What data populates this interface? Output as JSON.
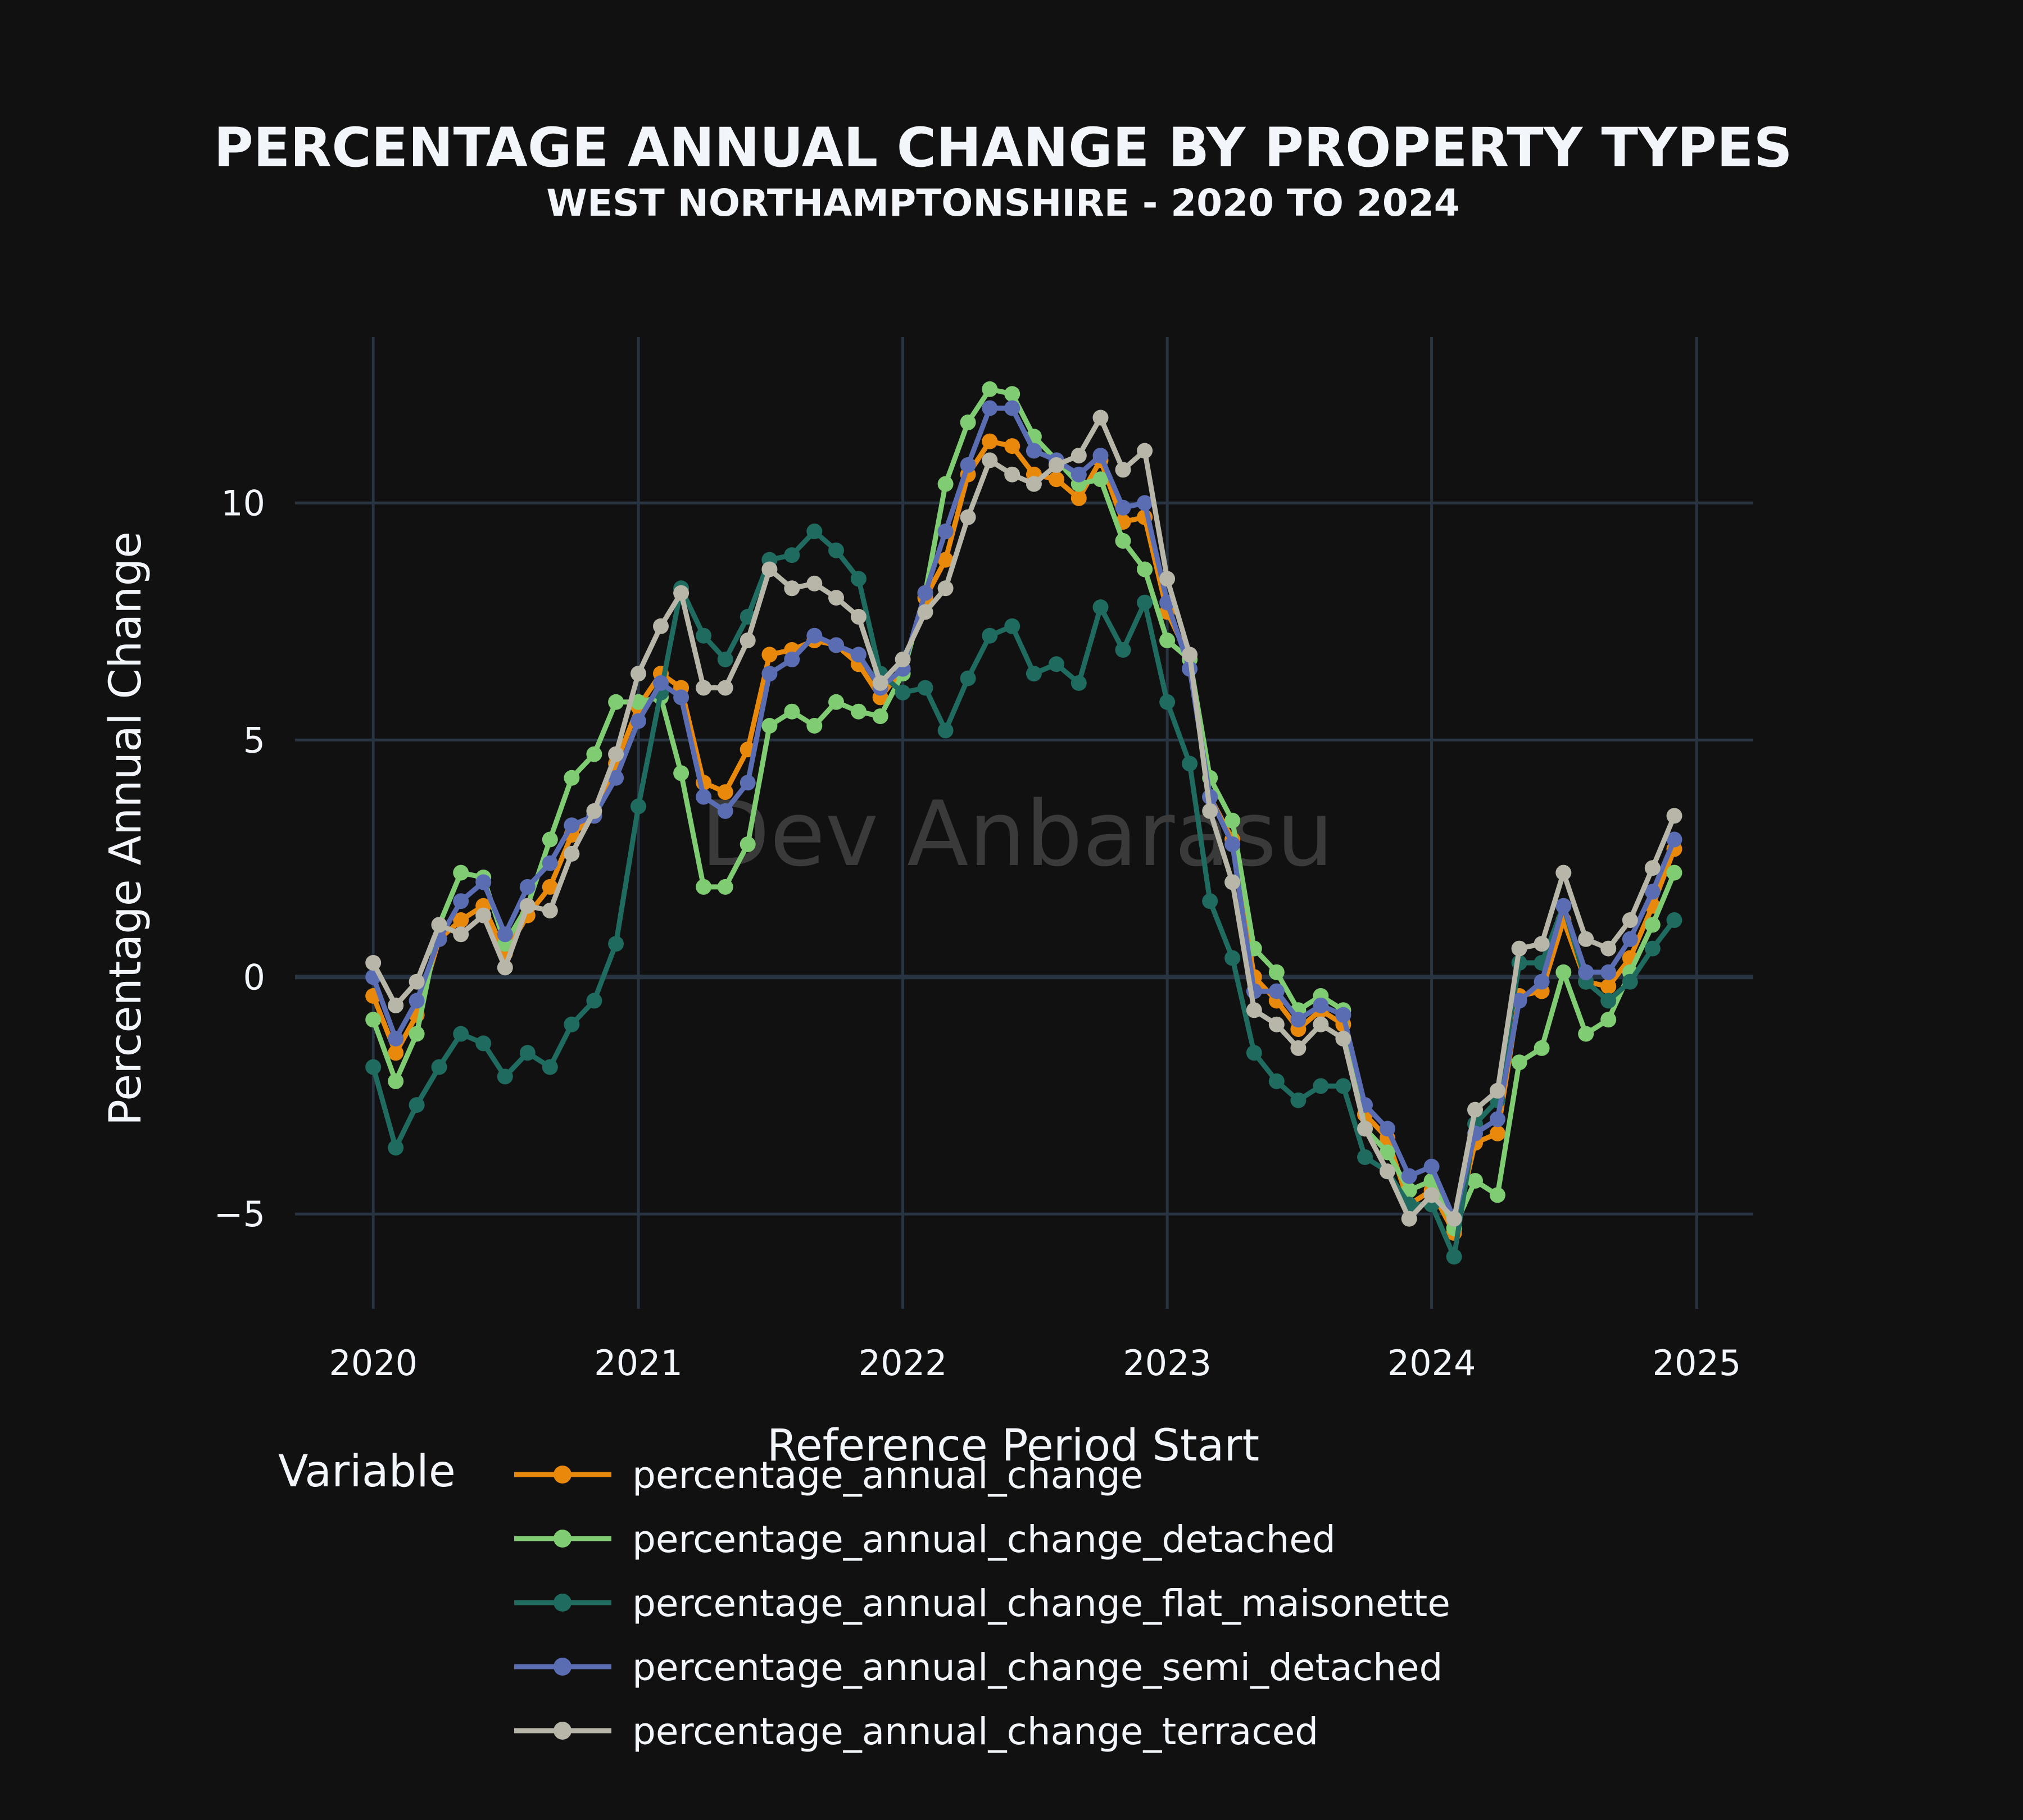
{
  "watermark": "Dev Anbarasu",
  "chart_data": {
    "type": "line",
    "title": "PERCENTAGE ANNUAL CHANGE BY PROPERTY TYPES",
    "subtitle": "WEST NORTHAMPTONSHIRE - 2020 TO 2024",
    "xlabel": "Reference Period Start",
    "ylabel": "Percentage Annual Change",
    "legend_title": "Variable",
    "legend_position": "bottom",
    "grid": true,
    "xlim": [
      "2019-09-15",
      "2025-03-20"
    ],
    "ylim": [
      -7,
      13.5
    ],
    "x_ticks": [
      "2020",
      "2021",
      "2022",
      "2023",
      "2024",
      "2025"
    ],
    "y_ticks": [
      -5,
      0,
      5,
      10
    ],
    "y_tick_labels": [
      "−5",
      "0",
      "5",
      "10"
    ],
    "x": [
      "2020-01",
      "2020-02",
      "2020-03",
      "2020-04",
      "2020-05",
      "2020-06",
      "2020-07",
      "2020-08",
      "2020-09",
      "2020-10",
      "2020-11",
      "2020-12",
      "2021-01",
      "2021-02",
      "2021-03",
      "2021-04",
      "2021-05",
      "2021-06",
      "2021-07",
      "2021-08",
      "2021-09",
      "2021-10",
      "2021-11",
      "2021-12",
      "2022-01",
      "2022-02",
      "2022-03",
      "2022-04",
      "2022-05",
      "2022-06",
      "2022-07",
      "2022-08",
      "2022-09",
      "2022-10",
      "2022-11",
      "2022-12",
      "2023-01",
      "2023-02",
      "2023-03",
      "2023-04",
      "2023-05",
      "2023-06",
      "2023-07",
      "2023-08",
      "2023-09",
      "2023-10",
      "2023-11",
      "2023-12",
      "2024-01",
      "2024-02",
      "2024-03",
      "2024-04",
      "2024-05",
      "2024-06",
      "2024-07",
      "2024-08",
      "2024-09",
      "2024-10",
      "2024-11",
      "2024-12"
    ],
    "series": [
      {
        "name": "percentage_annual_change",
        "color": "#e8890c",
        "values": [
          -0.4,
          -1.6,
          -0.8,
          0.8,
          1.2,
          1.5,
          0.5,
          1.3,
          1.9,
          3.0,
          3.4,
          4.5,
          5.7,
          6.4,
          6.1,
          4.1,
          3.9,
          4.8,
          6.8,
          6.9,
          7.1,
          7.0,
          6.6,
          5.9,
          6.5,
          8.0,
          8.8,
          10.6,
          11.3,
          11.2,
          10.6,
          10.5,
          10.1,
          10.9,
          9.6,
          9.7,
          7.7,
          6.7,
          3.8,
          2.9,
          0.0,
          -0.5,
          -1.1,
          -0.7,
          -1.0,
          -2.9,
          -3.4,
          -4.8,
          -4.5,
          -5.4,
          -3.5,
          -3.3,
          -0.4,
          -0.3,
          1.2,
          -0.1,
          -0.2,
          0.4,
          1.5,
          2.7
        ]
      },
      {
        "name": "percentage_annual_change_detached",
        "color": "#7fcc72",
        "values": [
          -0.9,
          -2.2,
          -1.2,
          1.1,
          2.2,
          2.1,
          0.7,
          1.5,
          2.9,
          4.2,
          4.7,
          5.8,
          5.8,
          5.9,
          4.3,
          1.9,
          1.9,
          2.8,
          5.3,
          5.6,
          5.3,
          5.8,
          5.6,
          5.5,
          6.4,
          8.1,
          10.4,
          11.7,
          12.4,
          12.3,
          11.4,
          10.9,
          10.4,
          10.5,
          9.2,
          8.6,
          7.1,
          6.7,
          4.2,
          3.3,
          0.6,
          0.1,
          -0.7,
          -0.4,
          -0.7,
          -3.2,
          -3.7,
          -4.5,
          -4.3,
          -5.3,
          -4.3,
          -4.6,
          -1.8,
          -1.5,
          0.1,
          -1.2,
          -0.9,
          0.1,
          1.1,
          2.2
        ]
      },
      {
        "name": "percentage_annual_change_flat_maisonette",
        "color": "#1f6b5f",
        "values": [
          -1.9,
          -3.6,
          -2.7,
          -1.9,
          -1.2,
          -1.4,
          -2.1,
          -1.6,
          -1.9,
          -1.0,
          -0.5,
          0.7,
          3.6,
          6.0,
          8.2,
          7.2,
          6.7,
          7.6,
          8.8,
          8.9,
          9.4,
          9.0,
          8.4,
          6.4,
          6.0,
          6.1,
          5.2,
          6.3,
          7.2,
          7.4,
          6.4,
          6.6,
          6.2,
          7.8,
          6.9,
          7.9,
          5.8,
          4.5,
          1.6,
          0.4,
          -1.6,
          -2.2,
          -2.6,
          -2.3,
          -2.3,
          -3.8,
          -4.1,
          -4.8,
          -4.8,
          -5.9,
          -3.1,
          -2.6,
          0.3,
          0.3,
          1.5,
          -0.1,
          -0.5,
          -0.1,
          0.6,
          1.2
        ]
      },
      {
        "name": "percentage_annual_change_semi_detached",
        "color": "#5a6db3",
        "values": [
          0.0,
          -1.3,
          -0.5,
          0.8,
          1.6,
          2.0,
          0.9,
          1.9,
          2.4,
          3.2,
          3.4,
          4.2,
          5.4,
          6.2,
          5.9,
          3.8,
          3.5,
          4.1,
          6.4,
          6.7,
          7.2,
          7.0,
          6.8,
          6.1,
          6.5,
          8.1,
          9.4,
          10.8,
          12.0,
          12.0,
          11.1,
          10.9,
          10.6,
          11.0,
          9.9,
          10.0,
          7.9,
          6.5,
          3.8,
          2.8,
          -0.3,
          -0.3,
          -0.9,
          -0.6,
          -0.8,
          -2.7,
          -3.2,
          -4.2,
          -4.0,
          -5.1,
          -3.3,
          -3.0,
          -0.5,
          -0.1,
          1.5,
          0.1,
          0.1,
          0.8,
          1.8,
          2.9
        ]
      },
      {
        "name": "percentage_annual_change_terraced",
        "color": "#b8b6a8",
        "values": [
          0.3,
          -0.6,
          -0.1,
          1.1,
          0.9,
          1.3,
          0.2,
          1.5,
          1.4,
          2.6,
          3.5,
          4.7,
          6.4,
          7.4,
          8.1,
          6.1,
          6.1,
          7.1,
          8.6,
          8.2,
          8.3,
          8.0,
          7.6,
          6.2,
          6.7,
          7.7,
          8.2,
          9.7,
          10.9,
          10.6,
          10.4,
          10.8,
          11.0,
          11.8,
          10.7,
          11.1,
          8.4,
          6.8,
          3.5,
          2.0,
          -0.7,
          -1.0,
          -1.5,
          -1.0,
          -1.3,
          -3.2,
          -4.1,
          -5.1,
          -4.6,
          -5.1,
          -2.8,
          -2.4,
          0.6,
          0.7,
          2.2,
          0.8,
          0.6,
          1.2,
          2.3,
          3.4
        ]
      }
    ]
  }
}
